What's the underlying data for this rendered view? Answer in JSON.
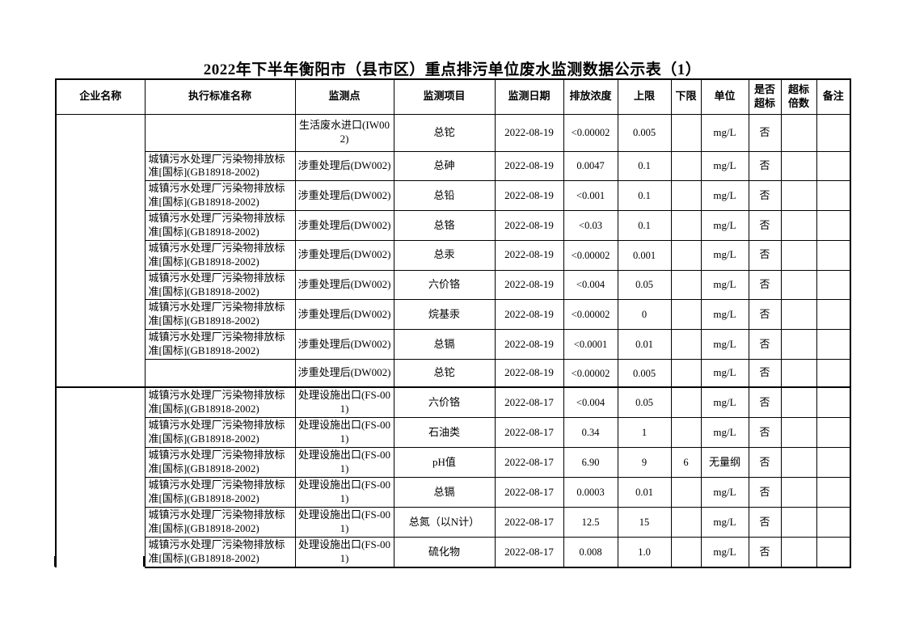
{
  "title": "2022年下半年衡阳市（县市区）重点排污单位废水监测数据公示表（1）",
  "colors": {
    "border": "#000000",
    "text": "#000000",
    "background": "#ffffff"
  },
  "table": {
    "headers": [
      "企业名称",
      "执行标准名称",
      "监测点",
      "监测项目",
      "监测日期",
      "排放浓度",
      "上限",
      "下限",
      "单位",
      "是否超标",
      "超标倍数",
      "备注"
    ],
    "sections": [
      {
        "company": "",
        "rows": [
          {
            "standard": "",
            "point": "生活废水进口(IW002)",
            "item": "总铊",
            "date": "2022-08-19",
            "value": "<0.00002",
            "upper": "0.005",
            "lower": "",
            "unit": "mg/L",
            "exceed": "否",
            "multiple": "",
            "note": ""
          },
          {
            "standard": "城镇污水处理厂污染物排放标准[国标](GB18918-2002)",
            "point": "涉重处理后(DW002)",
            "item": "总砷",
            "date": "2022-08-19",
            "value": "0.0047",
            "upper": "0.1",
            "lower": "",
            "unit": "mg/L",
            "exceed": "否",
            "multiple": "",
            "note": ""
          },
          {
            "standard": "城镇污水处理厂污染物排放标准[国标](GB18918-2002)",
            "point": "涉重处理后(DW002)",
            "item": "总铅",
            "date": "2022-08-19",
            "value": "<0.001",
            "upper": "0.1",
            "lower": "",
            "unit": "mg/L",
            "exceed": "否",
            "multiple": "",
            "note": ""
          },
          {
            "standard": "城镇污水处理厂污染物排放标准[国标](GB18918-2002)",
            "point": "涉重处理后(DW002)",
            "item": "总铬",
            "date": "2022-08-19",
            "value": "<0.03",
            "upper": "0.1",
            "lower": "",
            "unit": "mg/L",
            "exceed": "否",
            "multiple": "",
            "note": ""
          },
          {
            "standard": "城镇污水处理厂污染物排放标准[国标](GB18918-2002)",
            "point": "涉重处理后(DW002)",
            "item": "总汞",
            "date": "2022-08-19",
            "value": "<0.00002",
            "upper": "0.001",
            "lower": "",
            "unit": "mg/L",
            "exceed": "否",
            "multiple": "",
            "note": ""
          },
          {
            "standard": "城镇污水处理厂污染物排放标准[国标](GB18918-2002)",
            "point": "涉重处理后(DW002)",
            "item": "六价铬",
            "date": "2022-08-19",
            "value": "<0.004",
            "upper": "0.05",
            "lower": "",
            "unit": "mg/L",
            "exceed": "否",
            "multiple": "",
            "note": ""
          },
          {
            "standard": "城镇污水处理厂污染物排放标准[国标](GB18918-2002)",
            "point": "涉重处理后(DW002)",
            "item": "烷基汞",
            "date": "2022-08-19",
            "value": "<0.00002",
            "upper": "0",
            "lower": "",
            "unit": "mg/L",
            "exceed": "否",
            "multiple": "",
            "note": ""
          },
          {
            "standard": "城镇污水处理厂污染物排放标准[国标](GB18918-2002)",
            "point": "涉重处理后(DW002)",
            "item": "总镉",
            "date": "2022-08-19",
            "value": "<0.0001",
            "upper": "0.01",
            "lower": "",
            "unit": "mg/L",
            "exceed": "否",
            "multiple": "",
            "note": ""
          },
          {
            "standard": "",
            "point": "涉重处理后(DW002)",
            "item": "总铊",
            "date": "2022-08-19",
            "value": "<0.00002",
            "upper": "0.005",
            "lower": "",
            "unit": "mg/L",
            "exceed": "否",
            "multiple": "",
            "note": ""
          }
        ]
      },
      {
        "company": "",
        "rows": [
          {
            "standard": "城镇污水处理厂污染物排放标准[国标](GB18918-2002)",
            "point": "处理设施出口(FS-001)",
            "item": "六价铬",
            "date": "2022-08-17",
            "value": "<0.004",
            "upper": "0.05",
            "lower": "",
            "unit": "mg/L",
            "exceed": "否",
            "multiple": "",
            "note": ""
          },
          {
            "standard": "城镇污水处理厂污染物排放标准[国标](GB18918-2002)",
            "point": "处理设施出口(FS-001)",
            "item": "石油类",
            "date": "2022-08-17",
            "value": "0.34",
            "upper": "1",
            "lower": "",
            "unit": "mg/L",
            "exceed": "否",
            "multiple": "",
            "note": ""
          },
          {
            "standard": "城镇污水处理厂污染物排放标准[国标](GB18918-2002)",
            "point": "处理设施出口(FS-001)",
            "item": "pH值",
            "date": "2022-08-17",
            "value": "6.90",
            "upper": "9",
            "lower": "6",
            "unit": "无量纲",
            "exceed": "否",
            "multiple": "",
            "note": ""
          },
          {
            "standard": "城镇污水处理厂污染物排放标准[国标](GB18918-2002)",
            "point": "处理设施出口(FS-001)",
            "item": "总镉",
            "date": "2022-08-17",
            "value": "0.0003",
            "upper": "0.01",
            "lower": "",
            "unit": "mg/L",
            "exceed": "否",
            "multiple": "",
            "note": ""
          },
          {
            "standard": "城镇污水处理厂污染物排放标准[国标](GB18918-2002)",
            "point": "处理设施出口(FS-001)",
            "item": "总氮（以N计）",
            "date": "2022-08-17",
            "value": "12.5",
            "upper": "15",
            "lower": "",
            "unit": "mg/L",
            "exceed": "否",
            "multiple": "",
            "note": ""
          },
          {
            "standard": "城镇污水处理厂污染物排放标准[国标](GB18918-2002)",
            "point": "处理设施出口(FS-001)",
            "item": "硫化物",
            "date": "2022-08-17",
            "value": "0.008",
            "upper": "1.0",
            "lower": "",
            "unit": "mg/L",
            "exceed": "否",
            "multiple": "",
            "note": ""
          }
        ]
      }
    ]
  }
}
